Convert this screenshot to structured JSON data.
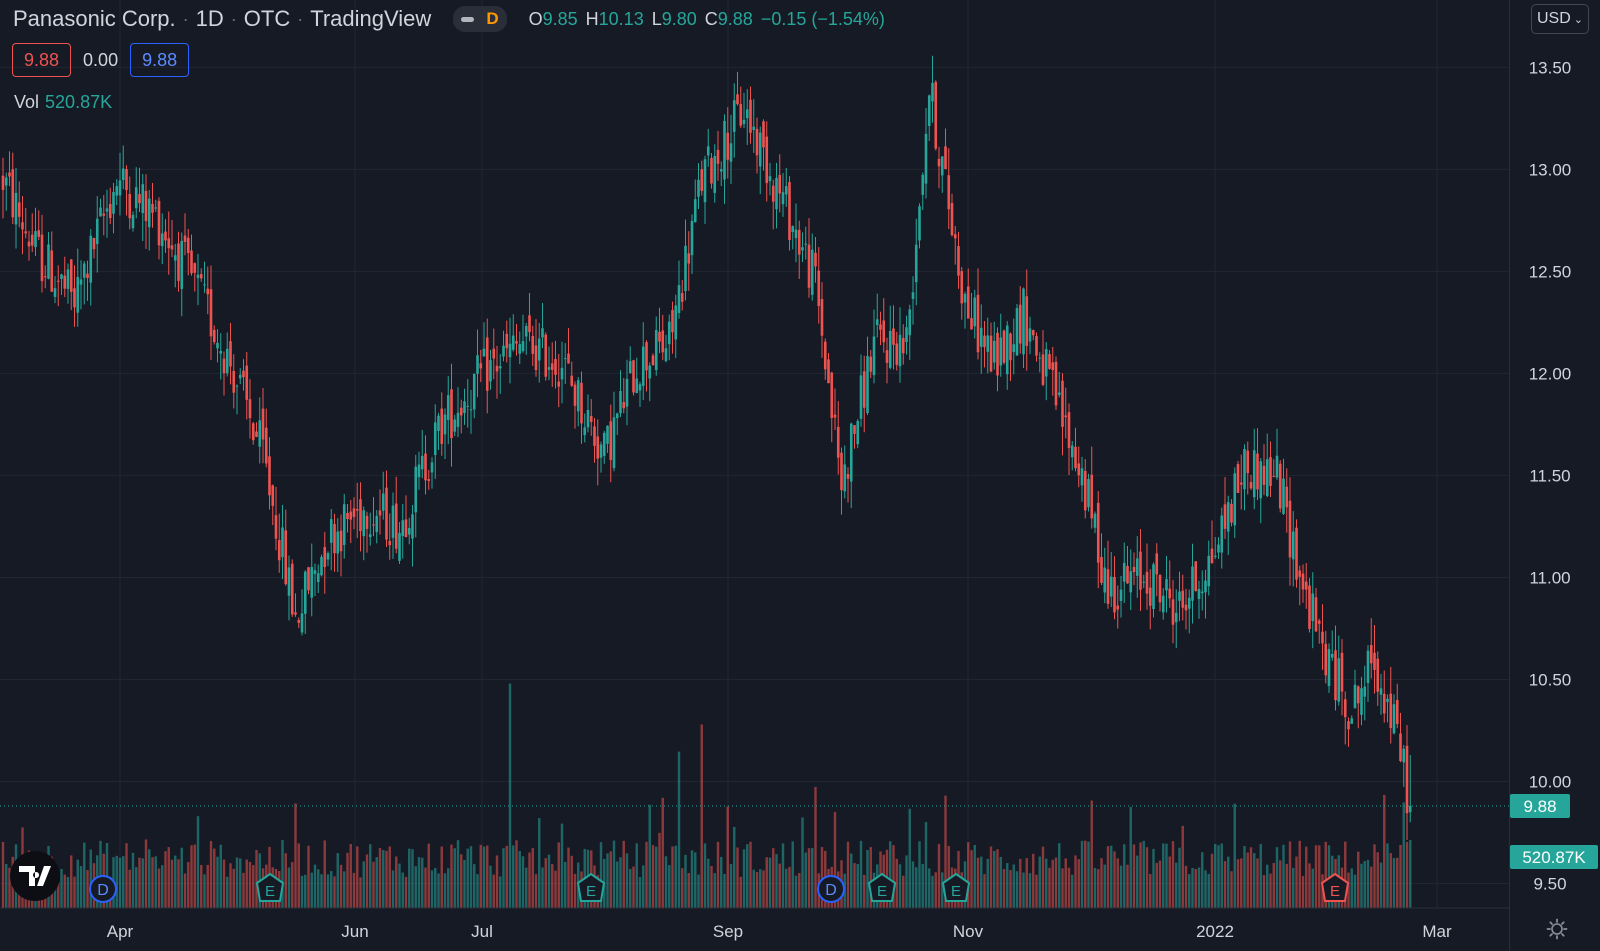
{
  "header": {
    "symbol": "Panasonic Corp.",
    "interval": "1D",
    "exchange": "OTC",
    "source": "TradingView",
    "interval_badge": "D",
    "ohlc": {
      "o_label": "O",
      "o": "9.85",
      "h_label": "H",
      "h": "10.13",
      "l_label": "L",
      "l": "9.80",
      "c_label": "C",
      "c": "9.88",
      "change": "−0.15 (−1.54%)"
    },
    "bid": "9.88",
    "spread": "0.00",
    "ask": "9.88",
    "vol_label": "Vol",
    "vol_value": "520.87K",
    "currency": "USD"
  },
  "colors": {
    "background": "#161a25",
    "up": "#26a69a",
    "down": "#ef5350",
    "grid": "#222633",
    "axis_text": "#d1d4dc"
  },
  "chart_data": {
    "type": "candlestick",
    "title": "Panasonic Corp. · 1D · OTC",
    "ylim": [
      9.38,
      13.83
    ],
    "y_ticks": [
      "13.50",
      "13.00",
      "12.50",
      "12.00",
      "11.50",
      "11.00",
      "10.50",
      "10.00",
      "9.50"
    ],
    "x_ticks": [
      "Apr",
      "Jun",
      "Jul",
      "Sep",
      "Nov",
      "2022",
      "Mar"
    ],
    "last_price": "9.88",
    "last_volume": "520.87K",
    "event_markers": [
      {
        "type": "D",
        "label": "Apr"
      },
      {
        "type": "E",
        "label": "May"
      },
      {
        "type": "E",
        "label": "Jul"
      },
      {
        "type": "E",
        "label": "Aug"
      },
      {
        "type": "D",
        "label": "Sep"
      },
      {
        "type": "E",
        "label": "Oct"
      },
      {
        "type": "E",
        "label": "Feb"
      }
    ],
    "grid": true,
    "waypoints": [
      [
        0,
        12.95
      ],
      [
        10,
        12.6
      ],
      [
        22,
        12.35
      ],
      [
        35,
        12.95
      ],
      [
        48,
        12.75
      ],
      [
        60,
        12.4
      ],
      [
        70,
        12.05
      ],
      [
        80,
        11.6
      ],
      [
        90,
        10.8
      ],
      [
        100,
        11.2
      ],
      [
        112,
        11.35
      ],
      [
        122,
        11.25
      ],
      [
        135,
        11.75
      ],
      [
        148,
        12.0
      ],
      [
        160,
        12.15
      ],
      [
        172,
        12.05
      ],
      [
        185,
        11.6
      ],
      [
        195,
        12.05
      ],
      [
        205,
        12.15
      ],
      [
        215,
        12.95
      ],
      [
        228,
        13.3
      ],
      [
        240,
        12.85
      ],
      [
        250,
        12.45
      ],
      [
        258,
        11.45
      ],
      [
        268,
        12.15
      ],
      [
        278,
        12.15
      ],
      [
        285,
        13.4
      ],
      [
        296,
        12.35
      ],
      [
        305,
        12.05
      ],
      [
        314,
        12.3
      ],
      [
        322,
        11.95
      ],
      [
        332,
        11.5
      ],
      [
        340,
        10.95
      ],
      [
        352,
        11.0
      ],
      [
        362,
        10.85
      ],
      [
        372,
        11.1
      ],
      [
        382,
        11.55
      ],
      [
        392,
        11.5
      ],
      [
        400,
        10.95
      ],
      [
        406,
        10.65
      ],
      [
        415,
        10.35
      ],
      [
        422,
        10.6
      ],
      [
        430,
        10.15
      ],
      [
        433,
        9.88
      ]
    ],
    "volume_scale_max": "peak bar approx. 2.5x last volume"
  }
}
